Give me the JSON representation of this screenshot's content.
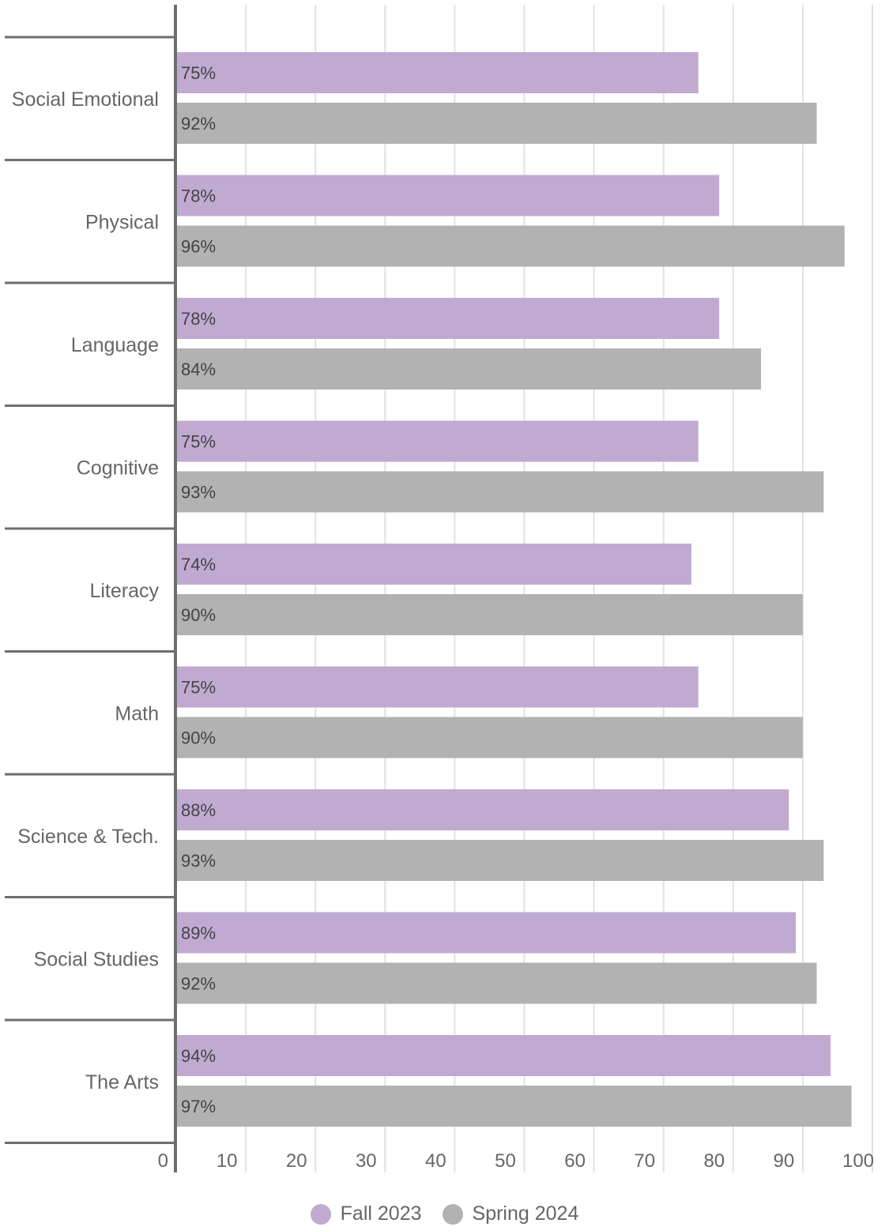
{
  "chart_data": {
    "type": "bar",
    "orientation": "horizontal",
    "categories": [
      "Social Emotional",
      "Physical",
      "Language",
      "Cognitive",
      "Literacy",
      "Math",
      "Science & Tech.",
      "Social Studies",
      "The Arts"
    ],
    "series": [
      {
        "name": "Fall 2023",
        "color": "#c0aad2",
        "values": [
          75,
          78,
          78,
          75,
          74,
          75,
          88,
          89,
          94
        ],
        "labels": [
          "75%",
          "78%",
          "78%",
          "75%",
          "74%",
          "75%",
          "88%",
          "89%",
          "94%"
        ]
      },
      {
        "name": "Spring 2024",
        "color": "#b2b2b2",
        "values": [
          92,
          96,
          84,
          93,
          90,
          90,
          93,
          92,
          97
        ],
        "labels": [
          "92%",
          "96%",
          "84%",
          "93%",
          "90%",
          "90%",
          "93%",
          "92%",
          "97%"
        ]
      }
    ],
    "xlim": [
      0,
      100
    ],
    "xticks": [
      "0",
      "10",
      "20",
      "30",
      "40",
      "50",
      "60",
      "70",
      "80",
      "90",
      "100"
    ],
    "grid": true,
    "legend_position": "bottom"
  }
}
